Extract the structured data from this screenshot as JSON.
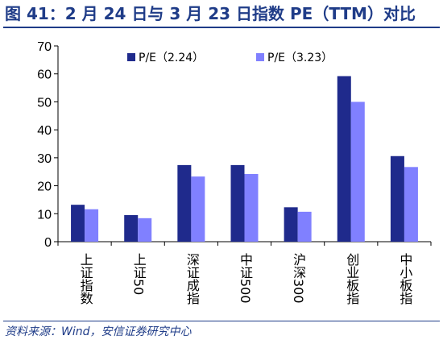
{
  "title": "图 41：2 月 24 日与 3 月 23 日指数 PE（TTM）对比",
  "source": "资料来源：Wind，安信证券研究中心",
  "colors": {
    "brand": "#1f3c88",
    "series1": "#1f2a8c",
    "series2": "#8080ff",
    "axis": "#000000"
  },
  "chart_data": {
    "type": "bar",
    "categories": [
      "上证指数",
      "上证50",
      "深证成指",
      "中证500",
      "沪深300",
      "创业板指",
      "中小板指"
    ],
    "series": [
      {
        "name": "P/E（2.24）",
        "values": [
          13.2,
          9.5,
          27.4,
          27.4,
          12.3,
          59.2,
          30.6
        ]
      },
      {
        "name": "P/E（3.23）",
        "values": [
          11.6,
          8.4,
          23.3,
          24.2,
          10.7,
          50.0,
          26.7
        ]
      }
    ],
    "ylim": [
      0,
      70
    ],
    "yticks": [
      "0",
      "10",
      "20",
      "30",
      "40",
      "50",
      "60",
      "70"
    ],
    "xlabel": "",
    "ylabel": "",
    "grid": false,
    "legend_position": "top-right"
  }
}
